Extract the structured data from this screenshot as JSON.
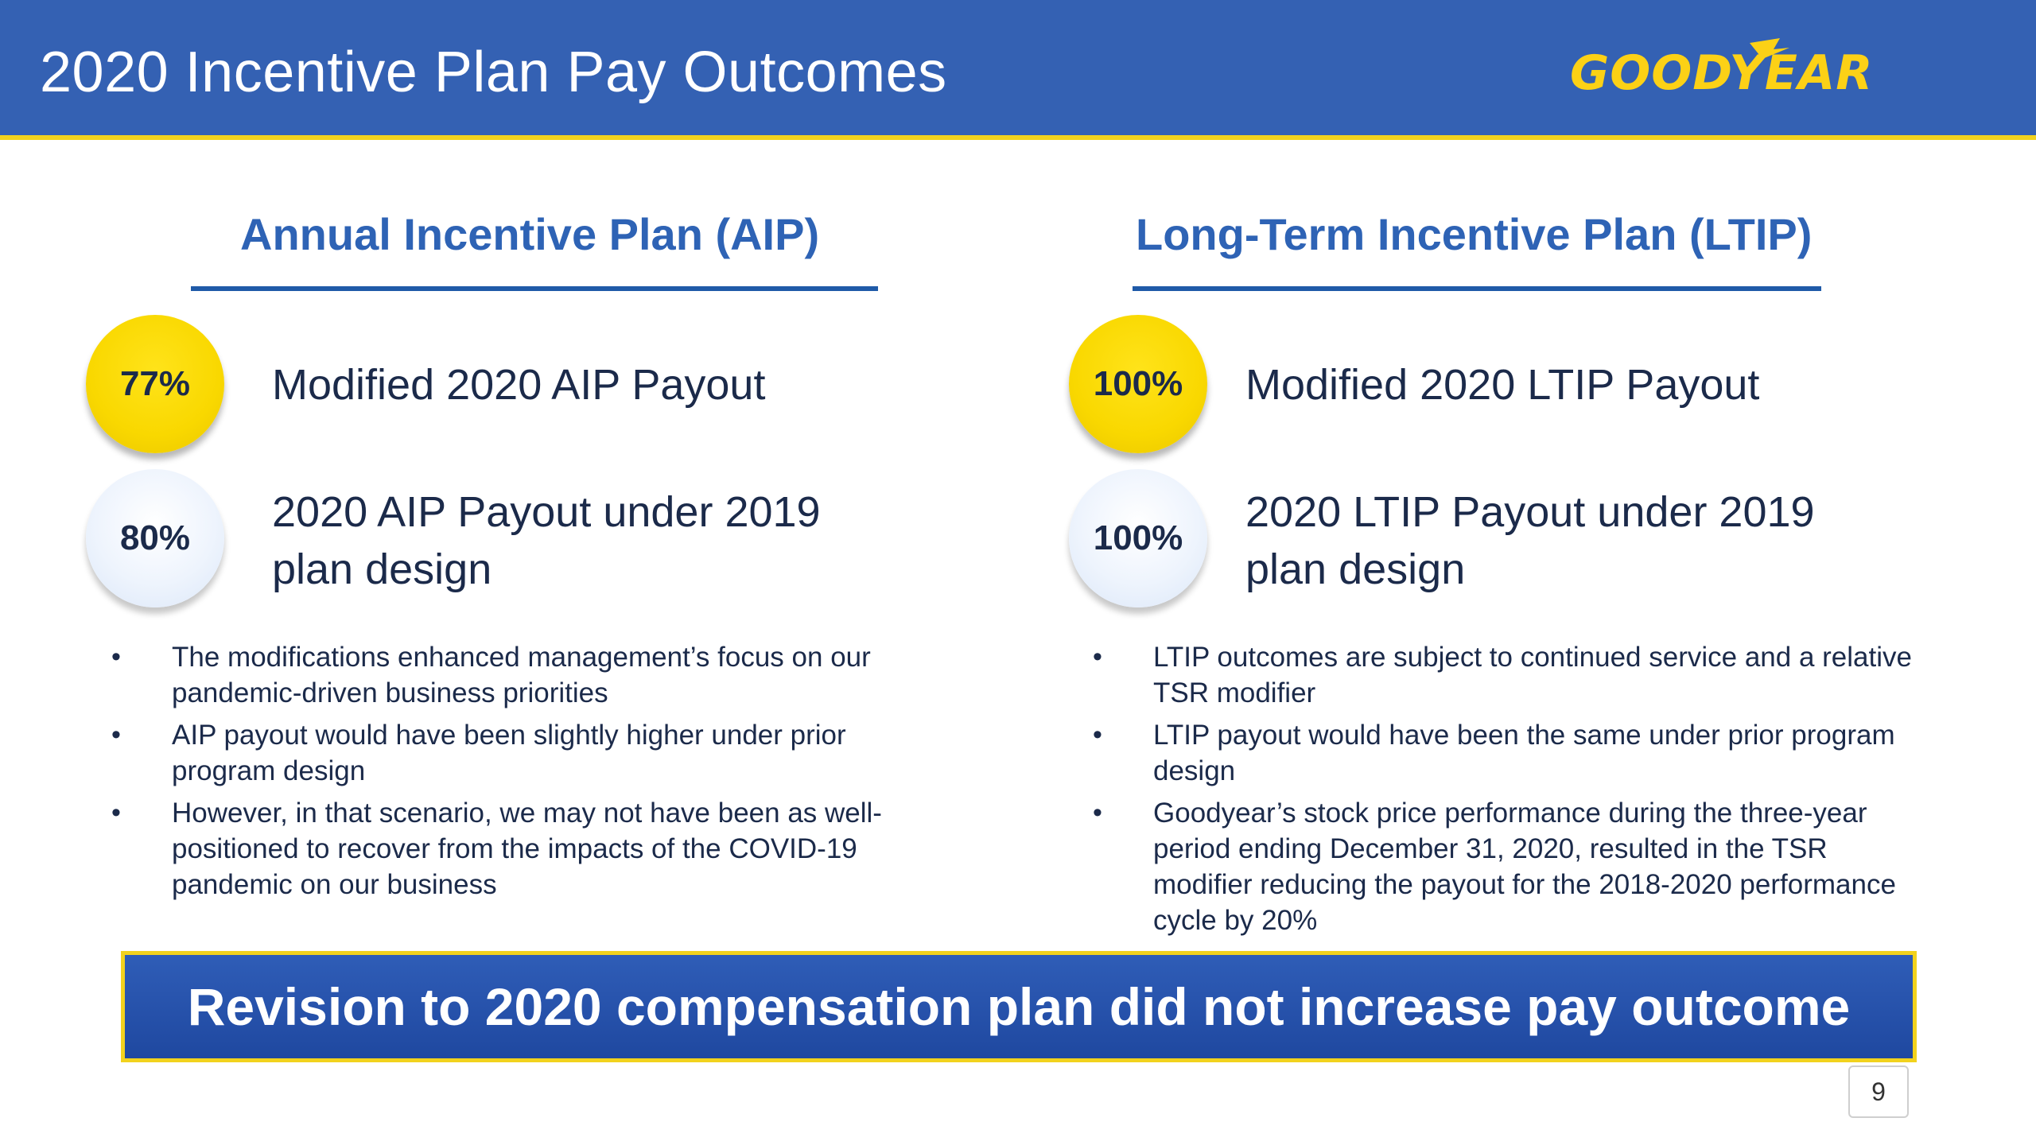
{
  "header": {
    "title": "2020 Incentive Plan Pay Outcomes",
    "logo_text": "GOODYEAR",
    "background_color": "#3461b3",
    "rule_color": "#f2d21d"
  },
  "aip": {
    "heading": "Annual Incentive Plan (AIP)",
    "metrics": [
      {
        "value": "77%",
        "label": "Modified 2020 AIP Payout",
        "style": "gold"
      },
      {
        "value": "80%",
        "label_line1": "2020 AIP Payout under 2019",
        "label_line2": "plan design",
        "style": "pale"
      }
    ],
    "bullets": [
      "The modifications enhanced management’s focus on our pandemic-driven business priorities",
      "AIP payout would have been slightly higher under prior program design",
      "However, in that scenario, we may not have been as well-positioned to recover from the impacts of the COVID-19 pandemic on our business"
    ]
  },
  "ltip": {
    "heading": "Long-Term Incentive Plan (LTIP)",
    "metrics": [
      {
        "value": "100%",
        "label": "Modified 2020 LTIP Payout",
        "style": "gold"
      },
      {
        "value": "100%",
        "label_line1": "2020 LTIP Payout under 2019",
        "label_line2": "plan design",
        "style": "pale"
      }
    ],
    "bullets": [
      "LTIP outcomes are subject to continued service and a relative TSR modifier",
      "LTIP payout would have been the same under prior program design",
      "Goodyear’s stock price performance during the three-year period ending December 31, 2020, resulted in the TSR modifier reducing the payout for the 2018-2020 performance cycle by 20%"
    ]
  },
  "banner": {
    "text": "Revision to 2020 compensation plan did not increase pay outcome"
  },
  "page_number": "9"
}
